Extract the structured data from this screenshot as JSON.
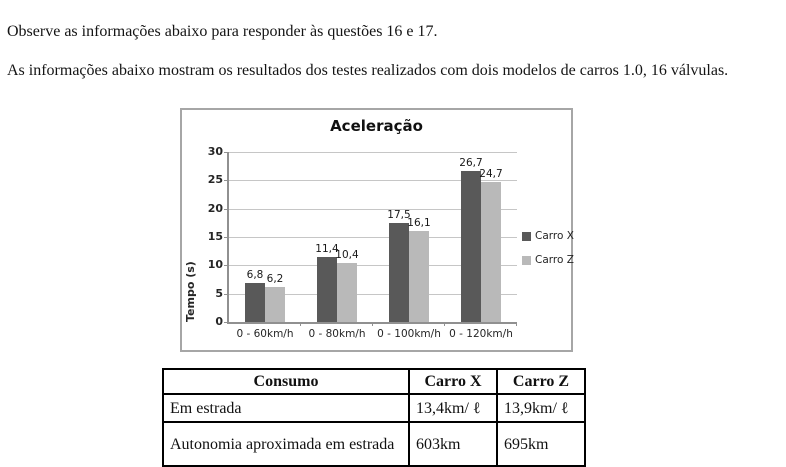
{
  "page": {
    "intro_line": "Observe as informações abaixo para responder às questões 16 e 17.",
    "description": "As informações abaixo mostram os resultados dos testes realizados com dois modelos de carros 1.0, 16 válvulas."
  },
  "chart_data": {
    "type": "bar",
    "title": "Aceleração",
    "ylabel": "Tempo (s)",
    "xlabel": "",
    "categories": [
      "0 - 60km/h",
      "0 - 80km/h",
      "0 - 100km/h",
      "0 - 120km/h"
    ],
    "series": [
      {
        "name": "Carro X",
        "color": "#595959",
        "values": [
          6.8,
          11.4,
          17.5,
          26.7
        ],
        "labels": [
          "6,8",
          "11,4",
          "17,5",
          "26,7"
        ]
      },
      {
        "name": "Carro Z",
        "color": "#b9b9b9",
        "values": [
          6.2,
          10.4,
          16.1,
          24.7
        ],
        "labels": [
          "6,2",
          "10,4",
          "16,1",
          "24,7"
        ]
      }
    ],
    "ylim": [
      0,
      30
    ],
    "ytick_step": 5,
    "yticks": [
      "0",
      "5",
      "10",
      "15",
      "20",
      "25",
      "30"
    ],
    "grid": true,
    "legend_position": "right",
    "colors": {
      "grid": "#c6c6c6",
      "axis": "#909090",
      "border": "#a6a6a6"
    }
  },
  "table": {
    "headers": [
      "Consumo",
      "Carro X",
      "Carro Z"
    ],
    "rows": [
      [
        "Em estrada",
        "13,4km/ ℓ",
        "13,9km/ ℓ"
      ],
      [
        "Autonomia aproximada em estrada",
        "603km",
        "695km"
      ]
    ]
  }
}
